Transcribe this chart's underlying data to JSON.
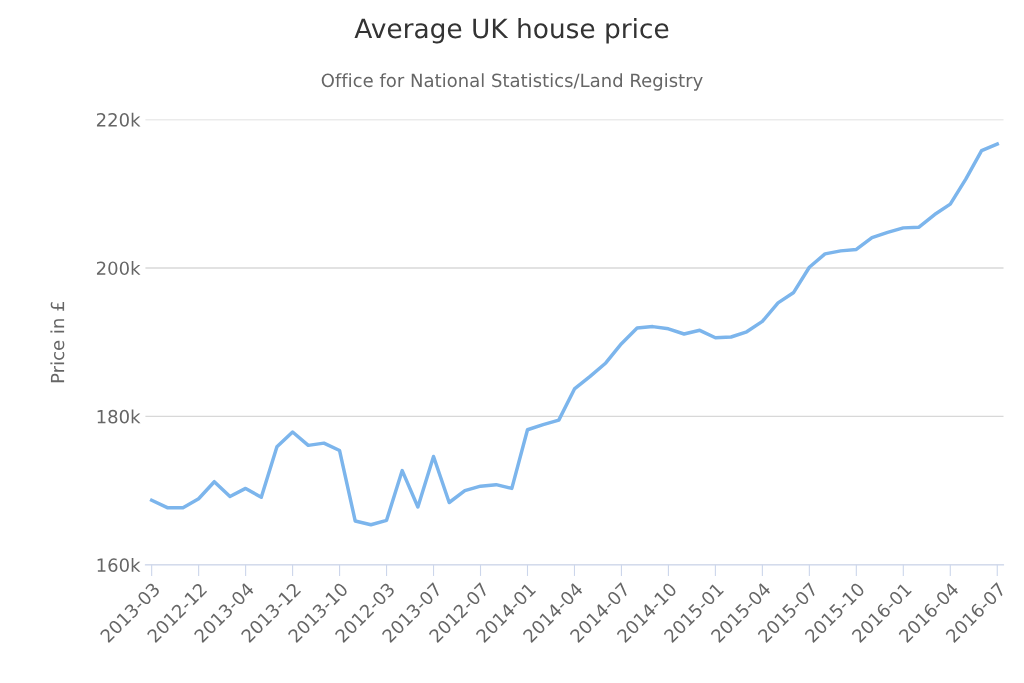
{
  "chart_data": {
    "type": "line",
    "title": "Average UK house price",
    "subtitle": "Office for National Statistics/Land Registry",
    "ylabel": "Price in £",
    "categories": [
      "2013-03",
      null,
      null,
      "2012-12",
      null,
      null,
      "2013-04",
      null,
      null,
      "2013-12",
      null,
      null,
      "2013-10",
      null,
      null,
      "2012-03",
      null,
      null,
      "2013-07",
      null,
      null,
      "2012-07",
      null,
      null,
      "2014-01",
      null,
      null,
      "2014-04",
      null,
      null,
      "2014-07",
      null,
      null,
      "2014-10",
      null,
      null,
      "2015-01",
      null,
      null,
      "2015-04",
      null,
      null,
      "2015-07",
      null,
      null,
      "2015-10",
      null,
      null,
      "2016-01",
      null,
      null,
      "2016-04",
      null,
      null,
      "2016-07"
    ],
    "series": [
      {
        "color": "#7cb5ec",
        "values": [
          168700,
          167700,
          167700,
          168900,
          171200,
          169200,
          170300,
          169100,
          175900,
          177900,
          176100,
          176400,
          175400,
          165900,
          165400,
          166000,
          172700,
          167800,
          174600,
          168400,
          170000,
          170600,
          170800,
          170300,
          178200,
          178900,
          179500,
          183700,
          185400,
          187200,
          189800,
          191900,
          192100,
          191800,
          191100,
          191600,
          190600,
          190700,
          191400,
          192800,
          195300,
          196700,
          200100,
          201900,
          202300,
          202500,
          204100,
          204800,
          205400,
          205500,
          207200,
          208600,
          212000,
          215800,
          216700
        ]
      }
    ],
    "ylim": [
      160000,
      220000
    ],
    "yticks": [
      {
        "value": 160000,
        "label": "160k"
      },
      {
        "value": 180000,
        "label": "180k"
      },
      {
        "value": 200000,
        "label": "200k"
      },
      {
        "value": 220000,
        "label": "220k"
      }
    ],
    "grid": "y",
    "legend": false,
    "marker": "none",
    "line_style": "solid"
  }
}
